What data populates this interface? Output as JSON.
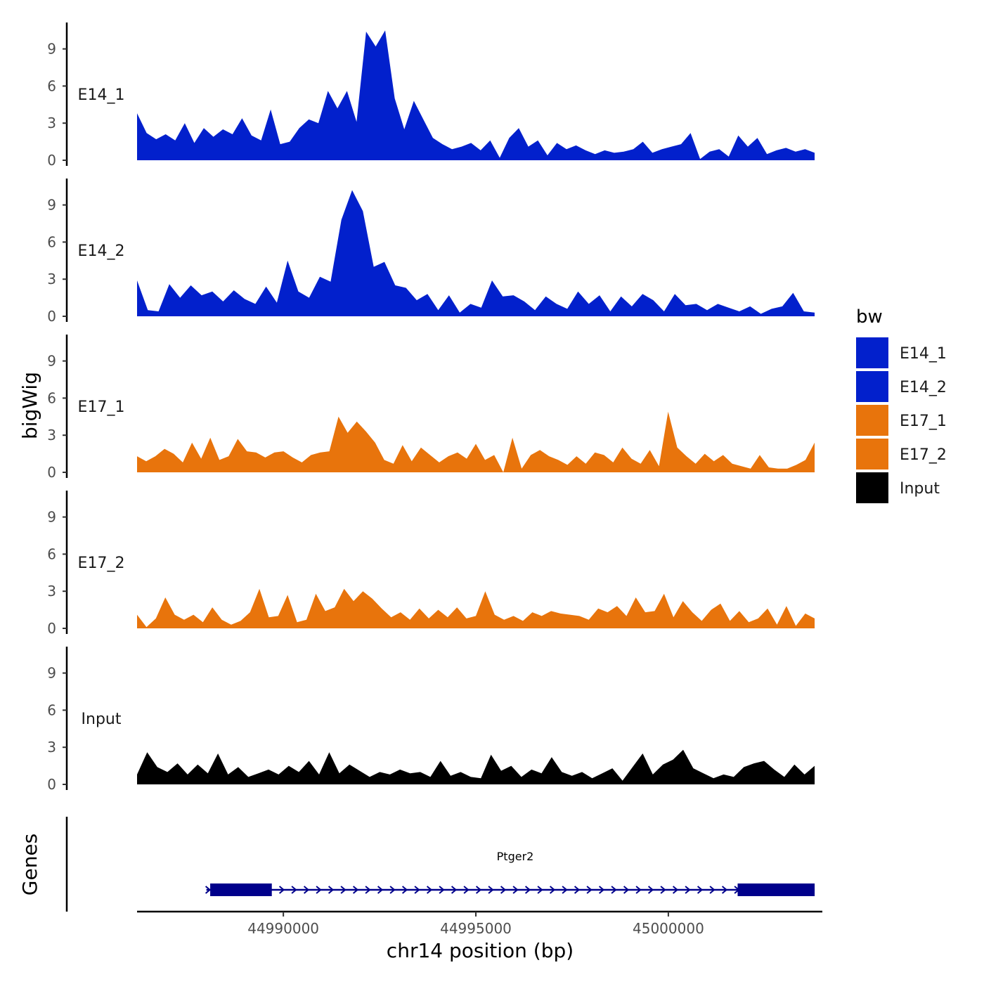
{
  "chart_data": {
    "type": "area",
    "ylabel": "bigWig",
    "xlabel": "chr14 position (bp)",
    "x_range": [
      44986200,
      45004000
    ],
    "ylim": [
      0,
      11
    ],
    "y_ticks": [
      0,
      3,
      6,
      9
    ],
    "x_ticks": [
      {
        "value": 44990000,
        "label": "44990000"
      },
      {
        "value": 44995000,
        "label": "44995000"
      },
      {
        "value": 45000000,
        "label": "45000000"
      }
    ],
    "legend": {
      "title": "bw",
      "placement": "right"
    },
    "series": [
      {
        "name": "E14_1",
        "color": "#0220CC",
        "x_start": 44986200,
        "x_end": 45003800,
        "values": [
          3.8,
          2.2,
          1.7,
          2.1,
          1.6,
          3.0,
          1.4,
          2.6,
          1.9,
          2.5,
          2.1,
          3.4,
          2.0,
          1.6,
          4.1,
          1.3,
          1.5,
          2.6,
          3.3,
          3.0,
          5.6,
          4.2,
          5.6,
          3.1,
          10.4,
          9.2,
          10.5,
          5.0,
          2.5,
          4.8,
          3.3,
          1.8,
          1.3,
          0.9,
          1.1,
          1.4,
          0.8,
          1.6,
          0.2,
          1.8,
          2.6,
          1.1,
          1.6,
          0.4,
          1.4,
          0.9,
          1.2,
          0.8,
          0.5,
          0.8,
          0.6,
          0.7,
          0.9,
          1.5,
          0.6,
          0.9,
          1.1,
          1.3,
          2.2,
          0.1,
          0.7,
          0.9,
          0.3,
          2.0,
          1.1,
          1.8,
          0.5,
          0.8,
          1.0,
          0.7,
          0.9,
          0.6
        ],
        "annotations": []
      },
      {
        "name": "E14_2",
        "color": "#0220CC",
        "x_start": 44986200,
        "x_end": 45003800,
        "values": [
          2.9,
          0.5,
          0.4,
          2.6,
          1.5,
          2.5,
          1.7,
          2.0,
          1.2,
          2.1,
          1.4,
          1.0,
          2.4,
          1.1,
          4.5,
          2.0,
          1.5,
          3.2,
          2.8,
          7.8,
          10.2,
          8.5,
          4.0,
          4.4,
          2.5,
          2.3,
          1.3,
          1.8,
          0.5,
          1.7,
          0.3,
          1.0,
          0.7,
          2.9,
          1.6,
          1.7,
          1.2,
          0.5,
          1.6,
          1.0,
          0.6,
          2.0,
          1.0,
          1.7,
          0.4,
          1.6,
          0.8,
          1.8,
          1.3,
          0.4,
          1.8,
          0.9,
          1.0,
          0.5,
          1.0,
          0.7,
          0.4,
          0.8,
          0.2,
          0.6,
          0.8,
          1.9,
          0.4,
          0.3
        ],
        "annotations": []
      },
      {
        "name": "E17_1",
        "color": "#E8740C",
        "x_start": 44986200,
        "x_end": 45003800,
        "values": [
          1.3,
          0.9,
          1.3,
          1.9,
          1.5,
          0.8,
          2.4,
          1.1,
          2.8,
          1.0,
          1.3,
          2.7,
          1.7,
          1.6,
          1.2,
          1.6,
          1.7,
          1.2,
          0.8,
          1.4,
          1.6,
          1.7,
          4.5,
          3.2,
          4.1,
          3.3,
          2.4,
          1.0,
          0.7,
          2.2,
          0.9,
          2.0,
          1.4,
          0.8,
          1.3,
          1.6,
          1.1,
          2.3,
          1.0,
          1.4,
          0.0,
          2.8,
          0.3,
          1.4,
          1.8,
          1.3,
          1.0,
          0.6,
          1.3,
          0.7,
          1.6,
          1.4,
          0.8,
          2.0,
          1.1,
          0.7,
          1.8,
          0.5,
          4.9,
          2.0,
          1.3,
          0.7,
          1.5,
          0.9,
          1.4,
          0.7,
          0.5,
          0.3,
          1.4,
          0.4,
          0.3,
          0.3,
          0.6,
          1.0,
          2.4
        ],
        "annotations": []
      },
      {
        "name": "E17_2",
        "color": "#E8740C",
        "x_start": 44986200,
        "x_end": 45003800,
        "values": [
          1.1,
          0.1,
          0.8,
          2.5,
          1.1,
          0.7,
          1.1,
          0.5,
          1.7,
          0.7,
          0.3,
          0.6,
          1.3,
          3.2,
          0.9,
          1.0,
          2.7,
          0.5,
          0.7,
          2.8,
          1.4,
          1.7,
          3.2,
          2.2,
          3.0,
          2.4,
          1.6,
          0.9,
          1.3,
          0.7,
          1.6,
          0.8,
          1.5,
          0.9,
          1.7,
          0.8,
          1.0,
          3.0,
          1.1,
          0.7,
          1.0,
          0.6,
          1.3,
          1.0,
          1.4,
          1.2,
          1.1,
          1.0,
          0.7,
          1.6,
          1.3,
          1.8,
          1.0,
          2.5,
          1.3,
          1.4,
          2.8,
          0.9,
          2.2,
          1.3,
          0.6,
          1.5,
          2.0,
          0.6,
          1.4,
          0.5,
          0.8,
          1.6,
          0.3,
          1.8,
          0.2,
          1.2,
          0.8
        ],
        "annotations": []
      },
      {
        "name": "Input",
        "color": "#000000",
        "x_start": 44986200,
        "x_end": 45003800,
        "values": [
          0.8,
          2.6,
          1.4,
          1.0,
          1.7,
          0.8,
          1.6,
          0.9,
          2.5,
          0.8,
          1.4,
          0.6,
          0.9,
          1.2,
          0.8,
          1.5,
          1.0,
          1.9,
          0.8,
          2.6,
          0.9,
          1.6,
          1.1,
          0.6,
          1.0,
          0.8,
          1.2,
          0.9,
          1.0,
          0.6,
          1.9,
          0.7,
          1.0,
          0.6,
          0.5,
          2.4,
          1.1,
          1.5,
          0.6,
          1.2,
          0.9,
          2.2,
          1.0,
          0.7,
          1.0,
          0.5,
          0.9,
          1.3,
          0.3,
          1.4,
          2.5,
          0.8,
          1.6,
          2.0,
          2.8,
          1.3,
          0.9,
          0.5,
          0.8,
          0.6,
          1.4,
          1.7,
          1.9,
          1.2,
          0.6,
          1.6,
          0.8,
          1.5
        ],
        "annotations": []
      }
    ],
    "genes": {
      "ylabel": "Genes",
      "name": "Ptger2",
      "color": "#00008B",
      "start": 44988000,
      "end": 45003800,
      "exons": [
        [
          44988100,
          44989700
        ],
        [
          45001800,
          45003800
        ]
      ],
      "strand": "+"
    }
  }
}
